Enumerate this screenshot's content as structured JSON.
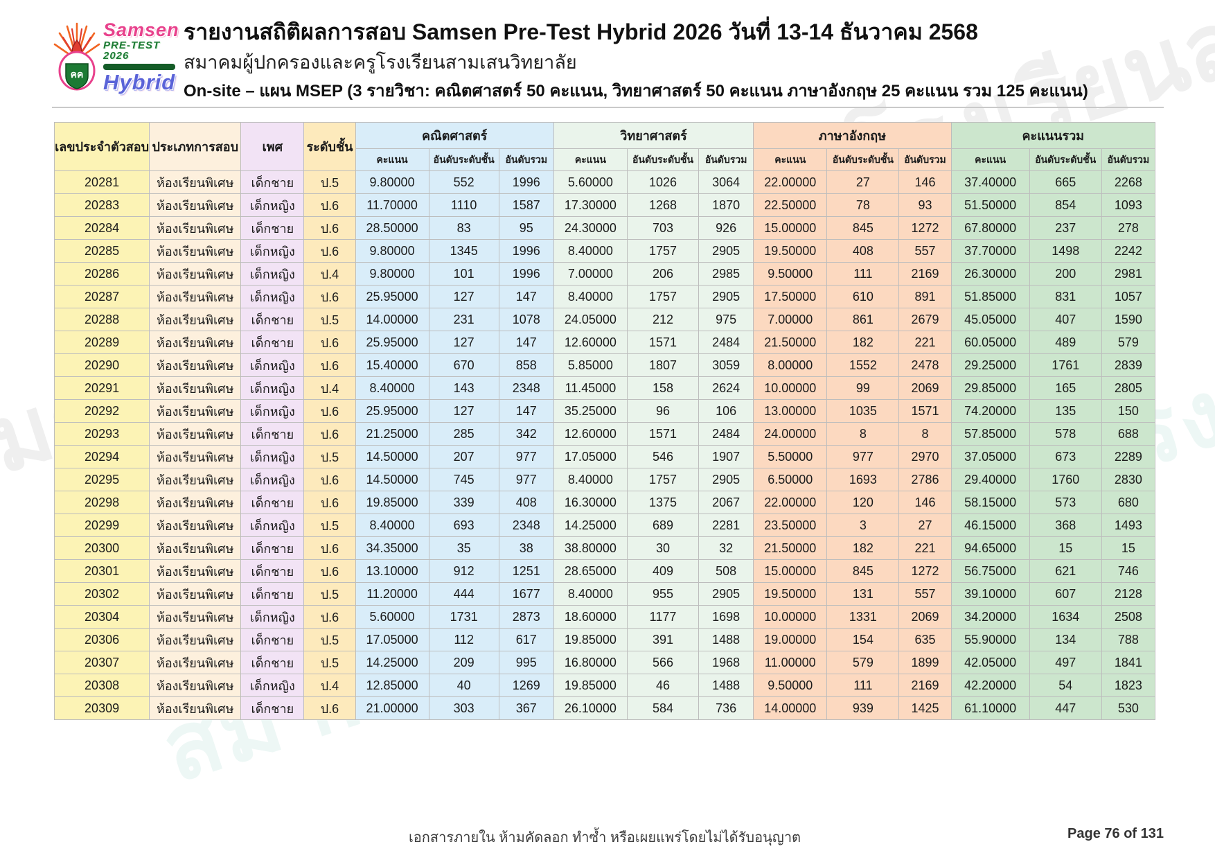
{
  "header": {
    "title": "รายงานสถิติผลการสอบ Samsen Pre-Test Hybrid 2026 วันที่ 13-14 ธันวาคม 2568",
    "subtitle": "สมาคมผู้ปกครองและครูโรงเรียนสามเสนวิทยาลัย",
    "info": "On-site – แผน MSEP  (3 รายวิชา: คณิตศาสตร์ 50 คะแนน, วิทยาศาสตร์ 50 คะแนน ภาษาอังกฤษ 25 คะแนน รวม 125 คะแนน)",
    "logo": {
      "line1": "Samsen",
      "line2": "PRE-TEST 2026",
      "line3": "Hybrid"
    }
  },
  "table": {
    "columns": [
      "เลขประจำตัวสอบ",
      "ประเภทการสอบ",
      "เพศ",
      "ระดับชั้น"
    ],
    "groups": [
      {
        "label": "คณิตศาสตร์",
        "color": "#d9edf9"
      },
      {
        "label": "วิทยาศาสตร์",
        "color": "#eaf4eb"
      },
      {
        "label": "ภาษาอังกฤษ",
        "color": "#fcd9c0"
      },
      {
        "label": "คะแนนรวม",
        "color": "#cce6cd"
      }
    ],
    "sub_columns": [
      "คะแนน",
      "อันดับระดับชั้น",
      "อันดับรวม"
    ],
    "column_colors": {
      "exam_id": "#fcf3b5",
      "exam_type": "#fdf0dd",
      "gender": "#f2e3f5",
      "grade": "#fdeabc"
    },
    "rows": [
      [
        "20281",
        "ห้องเรียนพิเศษ",
        "เด็กชาย",
        "ป.5",
        "9.80000",
        "552",
        "1996",
        "5.60000",
        "1026",
        "3064",
        "22.00000",
        "27",
        "146",
        "37.40000",
        "665",
        "2268"
      ],
      [
        "20283",
        "ห้องเรียนพิเศษ",
        "เด็กหญิง",
        "ป.6",
        "11.70000",
        "1110",
        "1587",
        "17.30000",
        "1268",
        "1870",
        "22.50000",
        "78",
        "93",
        "51.50000",
        "854",
        "1093"
      ],
      [
        "20284",
        "ห้องเรียนพิเศษ",
        "เด็กชาย",
        "ป.6",
        "28.50000",
        "83",
        "95",
        "24.30000",
        "703",
        "926",
        "15.00000",
        "845",
        "1272",
        "67.80000",
        "237",
        "278"
      ],
      [
        "20285",
        "ห้องเรียนพิเศษ",
        "เด็กหญิง",
        "ป.6",
        "9.80000",
        "1345",
        "1996",
        "8.40000",
        "1757",
        "2905",
        "19.50000",
        "408",
        "557",
        "37.70000",
        "1498",
        "2242"
      ],
      [
        "20286",
        "ห้องเรียนพิเศษ",
        "เด็กหญิง",
        "ป.4",
        "9.80000",
        "101",
        "1996",
        "7.00000",
        "206",
        "2985",
        "9.50000",
        "111",
        "2169",
        "26.30000",
        "200",
        "2981"
      ],
      [
        "20287",
        "ห้องเรียนพิเศษ",
        "เด็กหญิง",
        "ป.6",
        "25.95000",
        "127",
        "147",
        "8.40000",
        "1757",
        "2905",
        "17.50000",
        "610",
        "891",
        "51.85000",
        "831",
        "1057"
      ],
      [
        "20288",
        "ห้องเรียนพิเศษ",
        "เด็กชาย",
        "ป.5",
        "14.00000",
        "231",
        "1078",
        "24.05000",
        "212",
        "975",
        "7.00000",
        "861",
        "2679",
        "45.05000",
        "407",
        "1590"
      ],
      [
        "20289",
        "ห้องเรียนพิเศษ",
        "เด็กชาย",
        "ป.6",
        "25.95000",
        "127",
        "147",
        "12.60000",
        "1571",
        "2484",
        "21.50000",
        "182",
        "221",
        "60.05000",
        "489",
        "579"
      ],
      [
        "20290",
        "ห้องเรียนพิเศษ",
        "เด็กหญิง",
        "ป.6",
        "15.40000",
        "670",
        "858",
        "5.85000",
        "1807",
        "3059",
        "8.00000",
        "1552",
        "2478",
        "29.25000",
        "1761",
        "2839"
      ],
      [
        "20291",
        "ห้องเรียนพิเศษ",
        "เด็กหญิง",
        "ป.4",
        "8.40000",
        "143",
        "2348",
        "11.45000",
        "158",
        "2624",
        "10.00000",
        "99",
        "2069",
        "29.85000",
        "165",
        "2805"
      ],
      [
        "20292",
        "ห้องเรียนพิเศษ",
        "เด็กหญิง",
        "ป.6",
        "25.95000",
        "127",
        "147",
        "35.25000",
        "96",
        "106",
        "13.00000",
        "1035",
        "1571",
        "74.20000",
        "135",
        "150"
      ],
      [
        "20293",
        "ห้องเรียนพิเศษ",
        "เด็กชาย",
        "ป.6",
        "21.25000",
        "285",
        "342",
        "12.60000",
        "1571",
        "2484",
        "24.00000",
        "8",
        "8",
        "57.85000",
        "578",
        "688"
      ],
      [
        "20294",
        "ห้องเรียนพิเศษ",
        "เด็กหญิง",
        "ป.5",
        "14.50000",
        "207",
        "977",
        "17.05000",
        "546",
        "1907",
        "5.50000",
        "977",
        "2970",
        "37.05000",
        "673",
        "2289"
      ],
      [
        "20295",
        "ห้องเรียนพิเศษ",
        "เด็กหญิง",
        "ป.6",
        "14.50000",
        "745",
        "977",
        "8.40000",
        "1757",
        "2905",
        "6.50000",
        "1693",
        "2786",
        "29.40000",
        "1760",
        "2830"
      ],
      [
        "20298",
        "ห้องเรียนพิเศษ",
        "เด็กชาย",
        "ป.6",
        "19.85000",
        "339",
        "408",
        "16.30000",
        "1375",
        "2067",
        "22.00000",
        "120",
        "146",
        "58.15000",
        "573",
        "680"
      ],
      [
        "20299",
        "ห้องเรียนพิเศษ",
        "เด็กหญิง",
        "ป.5",
        "8.40000",
        "693",
        "2348",
        "14.25000",
        "689",
        "2281",
        "23.50000",
        "3",
        "27",
        "46.15000",
        "368",
        "1493"
      ],
      [
        "20300",
        "ห้องเรียนพิเศษ",
        "เด็กชาย",
        "ป.6",
        "34.35000",
        "35",
        "38",
        "38.80000",
        "30",
        "32",
        "21.50000",
        "182",
        "221",
        "94.65000",
        "15",
        "15"
      ],
      [
        "20301",
        "ห้องเรียนพิเศษ",
        "เด็กชาย",
        "ป.6",
        "13.10000",
        "912",
        "1251",
        "28.65000",
        "409",
        "508",
        "15.00000",
        "845",
        "1272",
        "56.75000",
        "621",
        "746"
      ],
      [
        "20302",
        "ห้องเรียนพิเศษ",
        "เด็กชาย",
        "ป.5",
        "11.20000",
        "444",
        "1677",
        "8.40000",
        "955",
        "2905",
        "19.50000",
        "131",
        "557",
        "39.10000",
        "607",
        "2128"
      ],
      [
        "20304",
        "ห้องเรียนพิเศษ",
        "เด็กหญิง",
        "ป.6",
        "5.60000",
        "1731",
        "2873",
        "18.60000",
        "1177",
        "1698",
        "10.00000",
        "1331",
        "2069",
        "34.20000",
        "1634",
        "2508"
      ],
      [
        "20306",
        "ห้องเรียนพิเศษ",
        "เด็กชาย",
        "ป.5",
        "17.05000",
        "112",
        "617",
        "19.85000",
        "391",
        "1488",
        "19.00000",
        "154",
        "635",
        "55.90000",
        "134",
        "788"
      ],
      [
        "20307",
        "ห้องเรียนพิเศษ",
        "เด็กชาย",
        "ป.5",
        "14.25000",
        "209",
        "995",
        "16.80000",
        "566",
        "1968",
        "11.00000",
        "579",
        "1899",
        "42.05000",
        "497",
        "1841"
      ],
      [
        "20308",
        "ห้องเรียนพิเศษ",
        "เด็กหญิง",
        "ป.4",
        "12.85000",
        "40",
        "1269",
        "19.85000",
        "46",
        "1488",
        "9.50000",
        "111",
        "2169",
        "42.20000",
        "54",
        "1823"
      ],
      [
        "20309",
        "ห้องเรียนพิเศษ",
        "เด็กชาย",
        "ป.6",
        "21.00000",
        "303",
        "367",
        "26.10000",
        "584",
        "736",
        "14.00000",
        "939",
        "1425",
        "61.10000",
        "447",
        "530"
      ]
    ]
  },
  "footer": {
    "note": "เอกสารภายใน ห้ามคัดลอก ทำซ้ำ หรือเผยแพร่โดยไม่ได้รับอนุญาต",
    "page": "Page 76 of 131"
  },
  "watermark": {
    "thai_text": "สมาคมผู้ปกครองและครูโรงเรียนสามเสนวิทยาลัย",
    "logo_text_1": "SAMSEN",
    "logo_text_2": "PRE-TEST",
    "logo_text_3": "2026",
    "logo_text_4": "HYBRID"
  }
}
